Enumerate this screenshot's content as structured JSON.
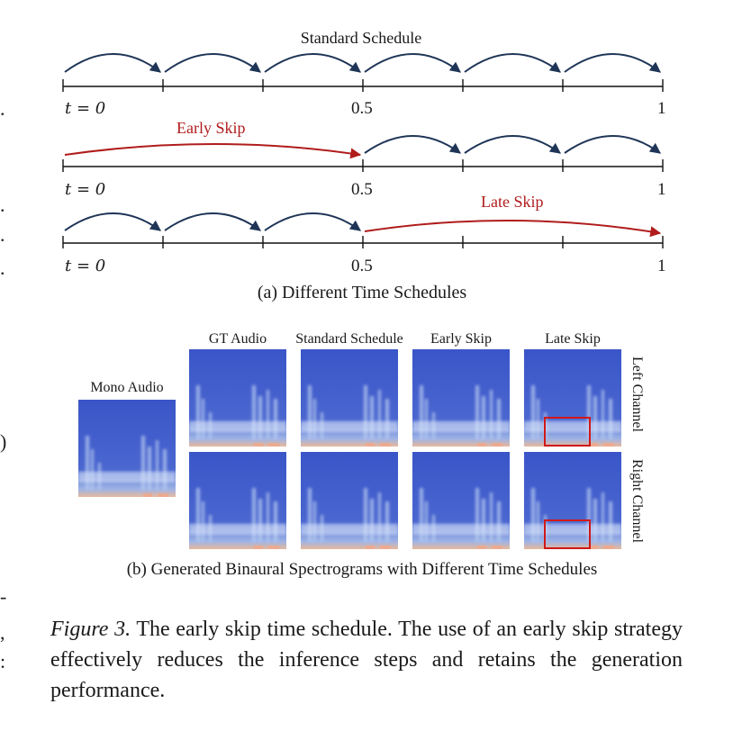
{
  "margin_chars": [
    ".",
    ".",
    ".",
    ".",
    ")",
    "-",
    ",",
    ":"
  ],
  "schedules": {
    "title": "Standard Schedule",
    "tick_start": "t = 0",
    "tick_mid": "0.5",
    "tick_end": "1",
    "early_skip_label": "Early Skip",
    "late_skip_label": "Late Skip",
    "subcaption": "(a) Different Time Schedules"
  },
  "spectrograms": {
    "mono_label": "Mono Audio",
    "columns": [
      "GT Audio",
      "Standard Schedule",
      "Early Skip",
      "Late Skip"
    ],
    "rows": [
      "Left Channel",
      "Right Channel"
    ],
    "subcaption": "(b) Generated Binaural Spectrograms with Different Time Schedules"
  },
  "caption": {
    "label": "Figure 3.",
    "text": " The early skip time schedule. The use of an early skip strategy effectively reduces the inference steps and retains the generation performance."
  },
  "colors": {
    "arrow_navy": "#1f3557",
    "skip_red": "#b01c1c",
    "spec_blue": "#3a55c8",
    "highlight_box": "#d01818"
  }
}
